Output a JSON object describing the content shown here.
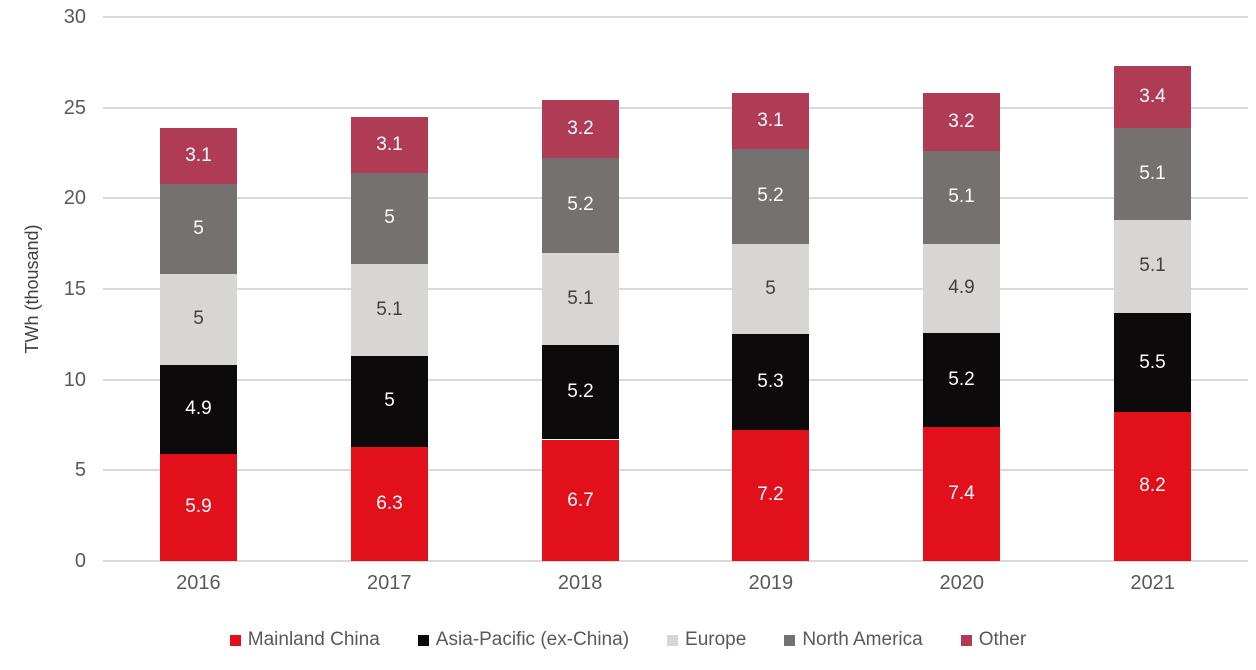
{
  "chart_data": {
    "type": "bar",
    "stacked": true,
    "title": "",
    "xlabel": "",
    "ylabel": "TWh (thousand)",
    "ylim": [
      0,
      30
    ],
    "yticks": [
      0,
      5,
      10,
      15,
      20,
      25,
      30
    ],
    "grid": true,
    "legend_position": "bottom",
    "categories": [
      "2016",
      "2017",
      "2018",
      "2019",
      "2020",
      "2021"
    ],
    "series": [
      {
        "name": "Mainland China",
        "color": "#e2101a",
        "label_color": "#ffffff",
        "values": [
          5.9,
          6.3,
          6.7,
          7.2,
          7.4,
          8.2
        ]
      },
      {
        "name": "Asia-Pacific (ex-China)",
        "color": "#0d0a0b",
        "label_color": "#ffffff",
        "values": [
          4.9,
          5,
          5.2,
          5.3,
          5.2,
          5.5
        ]
      },
      {
        "name": "Europe",
        "color": "#d8d5d5",
        "label_color": "#404040",
        "values": [
          5,
          5.1,
          5.1,
          5,
          4.9,
          5.1
        ]
      },
      {
        "name": "North America",
        "color": "#767171",
        "label_color": "#ffffff",
        "values": [
          5,
          5,
          5.2,
          5.2,
          5.1,
          5.1
        ]
      },
      {
        "name": "Other",
        "color": "#af3b55",
        "label_color": "#ffffff",
        "values": [
          3.1,
          3.1,
          3.2,
          3.1,
          3.2,
          3.4
        ]
      }
    ],
    "totals": [
      23.9,
      24.5,
      25.4,
      25.8,
      25.8,
      27.3
    ],
    "style": {
      "grid_color": "#d9d9d9",
      "tick_color": "#595959",
      "axis_title_color": "#404040",
      "legend_text_color": "#595959",
      "background": "#ffffff"
    }
  }
}
